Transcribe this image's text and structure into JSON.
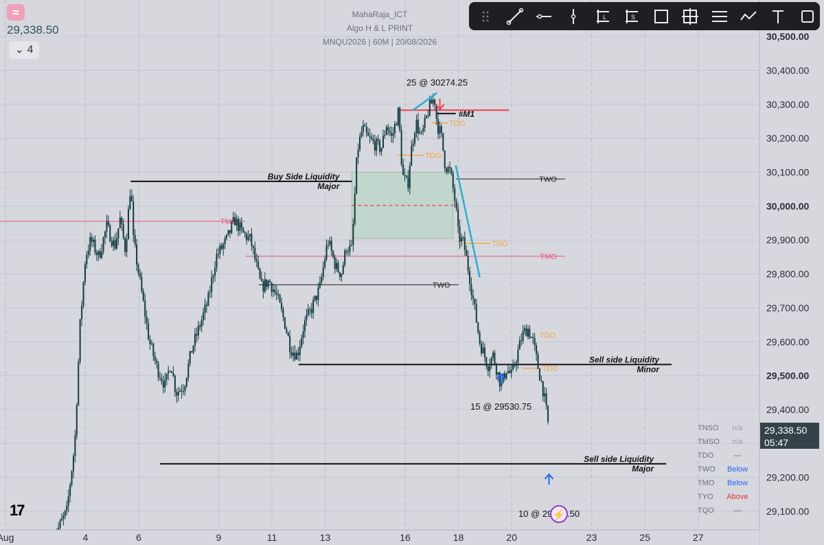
{
  "header": {
    "author": "MahaRaja_ICT",
    "script_name": "Algo H & L PRINT",
    "symbol_line": "MNQU2026 | 60M | 20/08/2026"
  },
  "top_left": {
    "logo_icon": "wave-logo-icon",
    "last_price": "29,338.50",
    "layers_label": "4",
    "layers_icon": "chevron-down-icon"
  },
  "toolbar": {
    "tools": [
      {
        "name": "drag-handle-icon"
      },
      {
        "name": "trend-line-icon"
      },
      {
        "name": "horizontal-ray-icon"
      },
      {
        "name": "vertical-line-icon"
      },
      {
        "name": "long-position-icon",
        "letter": "L"
      },
      {
        "name": "short-position-icon",
        "letter": "S"
      },
      {
        "name": "rectangle-icon"
      },
      {
        "name": "crosshair-box-icon"
      },
      {
        "name": "parallel-lines-icon"
      },
      {
        "name": "path-icon"
      },
      {
        "name": "text-tool-icon",
        "letter": "T"
      },
      {
        "name": "square-tool-icon"
      }
    ]
  },
  "price_tag": {
    "price": "29,338.50",
    "countdown": "05:47"
  },
  "status_table": [
    {
      "label": "TNSO",
      "value": "n/a",
      "color": "#9a9da6"
    },
    {
      "label": "TMSO",
      "value": "n/a",
      "color": "#9a9da6"
    },
    {
      "label": "TDO",
      "value": "—",
      "color": "#6d7079"
    },
    {
      "label": "TWO",
      "value": "Below",
      "color": "#2962ff"
    },
    {
      "label": "TMO",
      "value": "Below",
      "color": "#2962ff"
    },
    {
      "label": "TYO",
      "value": "Above",
      "color": "#e0313e"
    },
    {
      "label": "TQO",
      "value": "—",
      "color": "#6d7079"
    }
  ],
  "branding": {
    "tv_logo": "17",
    "bolt_icon": "lightning-bolt-icon"
  },
  "colors": {
    "candle": "#0f3a40",
    "tmo_line": "#e8557f",
    "m1_line": "#f23d4f",
    "tdo": "#f5a443",
    "trend": "#22b2d2",
    "zone_fill": "#b8d6c4",
    "up_arrow": "#2962ff",
    "down_arrow": "#f23d4f"
  },
  "chart_data": {
    "type": "candlestick",
    "xlabel": "",
    "ylabel": "",
    "ylim": [
      29040,
      30560
    ],
    "x_ticks": [
      {
        "label": "Aug",
        "day": 0.0
      },
      {
        "label": "4",
        "day": 3.0
      },
      {
        "label": "6",
        "day": 5.0
      },
      {
        "label": "9",
        "day": 8.0
      },
      {
        "label": "11",
        "day": 10.0
      },
      {
        "label": "13",
        "day": 12.0
      },
      {
        "label": "16",
        "day": 15.0
      },
      {
        "label": "18",
        "day": 17.0
      },
      {
        "label": "20",
        "day": 19.0
      },
      {
        "label": "23",
        "day": 22.0
      },
      {
        "label": "25",
        "day": 24.0
      },
      {
        "label": "27",
        "day": 26.0
      }
    ],
    "y_ticks": [
      "29,100.00",
      "29,200.00",
      "29,300.00",
      "29,400.00",
      "29,500.00",
      "29,600.00",
      "29,700.00",
      "29,800.00",
      "29,900.00",
      "30,000.00",
      "30,100.00",
      "30,200.00",
      "30,300.00",
      "30,400.00",
      "30,500.00"
    ],
    "y_tick_values": [
      29100,
      29200,
      29300,
      29400,
      29500,
      29600,
      29700,
      29800,
      29900,
      30000,
      30100,
      30200,
      30300,
      30400,
      30500
    ],
    "price_path": [
      [
        1.8,
        29020
      ],
      [
        2.3,
        29100
      ],
      [
        2.6,
        29300
      ],
      [
        2.8,
        29650
      ],
      [
        3.0,
        29850
      ],
      [
        3.2,
        29900
      ],
      [
        3.5,
        29850
      ],
      [
        3.8,
        29940
      ],
      [
        4.1,
        29880
      ],
      [
        4.3,
        29960
      ],
      [
        4.5,
        29870
      ],
      [
        4.7,
        30070
      ],
      [
        4.8,
        29900
      ],
      [
        5.0,
        29800
      ],
      [
        5.2,
        29700
      ],
      [
        5.4,
        29600
      ],
      [
        5.7,
        29520
      ],
      [
        6.0,
        29470
      ],
      [
        6.2,
        29540
      ],
      [
        6.4,
        29450
      ],
      [
        6.7,
        29470
      ],
      [
        7.0,
        29580
      ],
      [
        7.3,
        29650
      ],
      [
        7.6,
        29720
      ],
      [
        7.9,
        29850
      ],
      [
        8.3,
        29900
      ],
      [
        8.6,
        29960
      ],
      [
        8.9,
        29920
      ],
      [
        9.2,
        29900
      ],
      [
        9.4,
        29830
      ],
      [
        9.6,
        29760
      ],
      [
        9.9,
        29780
      ],
      [
        10.2,
        29730
      ],
      [
        10.5,
        29650
      ],
      [
        10.7,
        29580
      ],
      [
        10.95,
        29560
      ],
      [
        11.2,
        29650
      ],
      [
        11.5,
        29700
      ],
      [
        11.8,
        29760
      ],
      [
        12.1,
        29900
      ],
      [
        12.4,
        29820
      ],
      [
        12.6,
        29800
      ],
      [
        12.8,
        29880
      ],
      [
        13.0,
        29870
      ],
      [
        13.2,
        30160
      ],
      [
        13.4,
        30230
      ],
      [
        13.6,
        30200
      ],
      [
        13.9,
        30180
      ],
      [
        14.1,
        30170
      ],
      [
        14.3,
        30240
      ],
      [
        14.5,
        30200
      ],
      [
        14.75,
        30280
      ],
      [
        14.9,
        30090
      ],
      [
        15.1,
        30060
      ],
      [
        15.2,
        30150
      ],
      [
        15.4,
        30250
      ],
      [
        15.6,
        30200
      ],
      [
        15.9,
        30290
      ],
      [
        16.1,
        30320
      ],
      [
        16.2,
        30240
      ],
      [
        16.35,
        30210
      ],
      [
        16.5,
        30120
      ],
      [
        16.7,
        30100
      ],
      [
        16.9,
        30000
      ],
      [
        17.0,
        29910
      ],
      [
        17.2,
        29890
      ],
      [
        17.4,
        29800
      ],
      [
        17.6,
        29700
      ],
      [
        17.8,
        29600
      ],
      [
        18.1,
        29530
      ],
      [
        18.3,
        29560
      ],
      [
        18.6,
        29470
      ],
      [
        18.8,
        29520
      ],
      [
        19.0,
        29500
      ],
      [
        19.2,
        29560
      ],
      [
        19.4,
        29620
      ],
      [
        19.6,
        29640
      ],
      [
        19.8,
        29600
      ],
      [
        20.0,
        29520
      ],
      [
        20.2,
        29450
      ],
      [
        20.4,
        29338
      ]
    ],
    "levels": [
      {
        "label": "Buy Side Liquidity",
        "sub": "Major",
        "price": 30073,
        "x0": 4.7,
        "x1": 13.0,
        "kind": "liq"
      },
      {
        "label": "TMO",
        "price": 29955,
        "x0": -1.0,
        "x1": 9.0,
        "kind": "tmo"
      },
      {
        "label": "TMO",
        "price": 29852,
        "x0": 9.0,
        "x1": 21.0,
        "kind": "tmo"
      },
      {
        "label": "TWO",
        "price": 30080,
        "x0": 16.9,
        "x1": 21.0,
        "kind": "two"
      },
      {
        "label": "TWO",
        "price": 29768,
        "x0": 9.5,
        "x1": 17.0,
        "kind": "two"
      },
      {
        "label": "#M1",
        "price": 30283,
        "x0": 14.8,
        "x1": 18.9,
        "kind": "m1"
      },
      {
        "label": "Sell side Liquidity",
        "sub": "Minor",
        "price": 29533,
        "x0": 11.0,
        "x1": 25.0,
        "kind": "liq"
      },
      {
        "label": "Sell side Liquidity",
        "sub": "Major",
        "price": 29240,
        "x0": 5.8,
        "x1": 24.8,
        "kind": "liq"
      }
    ],
    "tdo_marks": [
      {
        "label": "TDO",
        "price": 30245,
        "x0": 16.0,
        "x1": 16.6
      },
      {
        "label": "TDO",
        "price": 30150,
        "x0": 14.7,
        "x1": 15.7
      },
      {
        "label": "TDO",
        "price": 29890,
        "x0": 17.1,
        "x1": 18.2
      },
      {
        "label": "TDO",
        "price": 29522,
        "x0": 19.4,
        "x1": 20.1
      }
    ],
    "tdo_tags": [
      {
        "label": "TDO",
        "price": 29620
      }
    ],
    "zone": {
      "x0": 13.0,
      "x1": 16.8,
      "top": 30100,
      "bottom": 29905,
      "mid": 30002
    },
    "trend_lines": [
      {
        "x0": 15.3,
        "y0": 30283,
        "x1": 16.2,
        "y1": 30334
      },
      {
        "x0": 16.9,
        "y0": 30120,
        "x1": 17.8,
        "y1": 29790
      }
    ],
    "annotations": [
      {
        "text": "25 @ 30274.25",
        "day": 16.2,
        "price": 30355,
        "arrow": "down",
        "arrow_price": 30300
      },
      {
        "text": "15 @ 29530.75",
        "day": 18.6,
        "price": 29400,
        "arrow": "up",
        "arrow_price": 29490
      },
      {
        "text": "10 @ 29329.50",
        "day": 20.4,
        "price": 29084,
        "arrow": "up",
        "arrow_price": 29195
      }
    ]
  }
}
